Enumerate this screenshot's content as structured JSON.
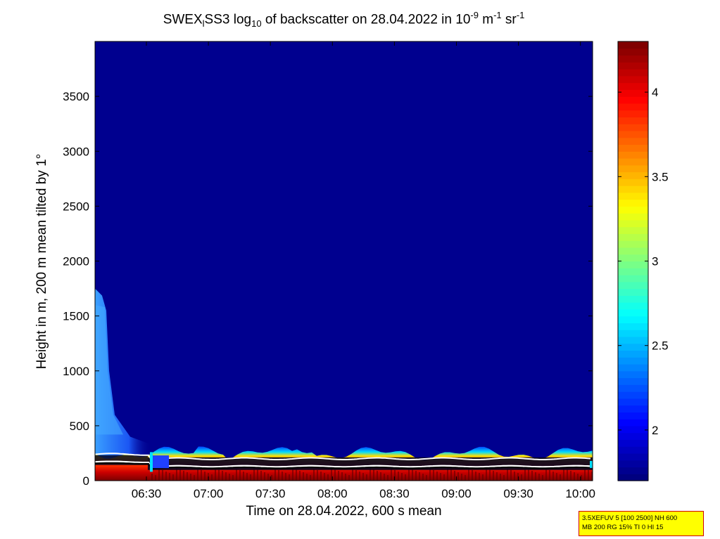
{
  "chart_data": {
    "type": "heatmap",
    "title": {
      "pre": "SWEX",
      "sub1": "l",
      "mid": "SS3 log",
      "sub2": "10",
      "post": " of backscatter on 28.04.2022 in 10",
      "sup1": "-9",
      "unit_mid": " m",
      "sup2": "-1",
      "unit_end": " sr",
      "sup3": "-1"
    },
    "xlabel": "Time on 28.04.2022, 600 s mean",
    "ylabel": "Height in m, 200 m mean tilted by 1°",
    "x_ticks": [
      "06:30",
      "07:00",
      "07:30",
      "08:00",
      "08:30",
      "09:00",
      "09:30",
      "10:00"
    ],
    "y_ticks": [
      "0",
      "500",
      "1000",
      "1500",
      "2000",
      "2500",
      "3000",
      "3500"
    ],
    "ylim": [
      0,
      4000
    ],
    "colorbar": {
      "range": [
        1.7,
        4.3
      ],
      "ticks": [
        "2",
        "2.5",
        "3",
        "3.5",
        "4"
      ],
      "colormap": "jet"
    },
    "features": {
      "surface_layer_height_m": [
        0,
        300
      ],
      "early_plume_top_m": 1750,
      "aerosol_layer_top_m": 130,
      "cloud_base_line_m": 200
    }
  },
  "info_box": {
    "line1": "3.5XEFUV 5 [100 2500] NH 600",
    "line2": "MB 200 RG 15% TI 0 HI 15"
  },
  "colors": {
    "background": "#00008f",
    "layer_red": "#cc0000",
    "layer_yellow": "#ffe000",
    "line_white": "#ffffff",
    "line_black": "#000000"
  }
}
